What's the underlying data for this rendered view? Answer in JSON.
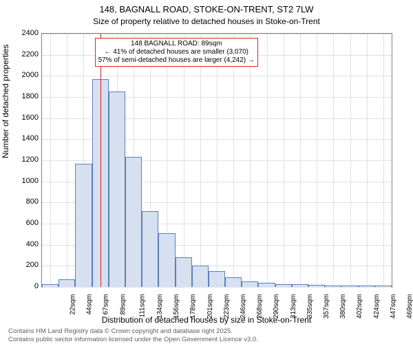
{
  "title_line1": "148, BAGNALL ROAD, STOKE-ON-TRENT, ST2 7LW",
  "title_line2": "Size of property relative to detached houses in Stoke-on-Trent",
  "y_axis_label": "Number of detached properties",
  "x_axis_label": "Distribution of detached houses by size in Stoke-on-Trent",
  "footer_line1": "Contains HM Land Registry data © Crown copyright and database right 2025.",
  "footer_line2": "Contains public sector information licensed under the Open Government Licence v3.0.",
  "chart": {
    "type": "histogram",
    "ylim": [
      0,
      2400
    ],
    "yticks": [
      0,
      200,
      400,
      600,
      800,
      1000,
      1200,
      1400,
      1600,
      1800,
      2000,
      2200,
      2400
    ],
    "x_categories": [
      "22sqm",
      "44sqm",
      "67sqm",
      "89sqm",
      "111sqm",
      "134sqm",
      "156sqm",
      "178sqm",
      "201sqm",
      "223sqm",
      "246sqm",
      "268sqm",
      "290sqm",
      "313sqm",
      "335sqm",
      "357sqm",
      "380sqm",
      "402sqm",
      "424sqm",
      "447sqm",
      "469sqm"
    ],
    "values": [
      25,
      70,
      1170,
      1970,
      1850,
      1230,
      720,
      510,
      280,
      200,
      150,
      90,
      55,
      40,
      25,
      25,
      20,
      10,
      10,
      10,
      10
    ],
    "bar_fill": "#d6e0f0",
    "bar_stroke": "#5b7fb8",
    "bar_stroke_width": 1,
    "background_color": "#ffffff",
    "grid_color": "#e0e0e0",
    "axis_color": "#808080",
    "marker": {
      "index": 3,
      "color": "#e02020",
      "callout_lines": [
        "148 BAGNALL ROAD: 89sqm",
        "← 41% of detached houses are smaller (3,070)",
        "57% of semi-detached houses are larger (4,242) →"
      ]
    },
    "label_fontsize": 12,
    "tick_fontsize": 11
  }
}
